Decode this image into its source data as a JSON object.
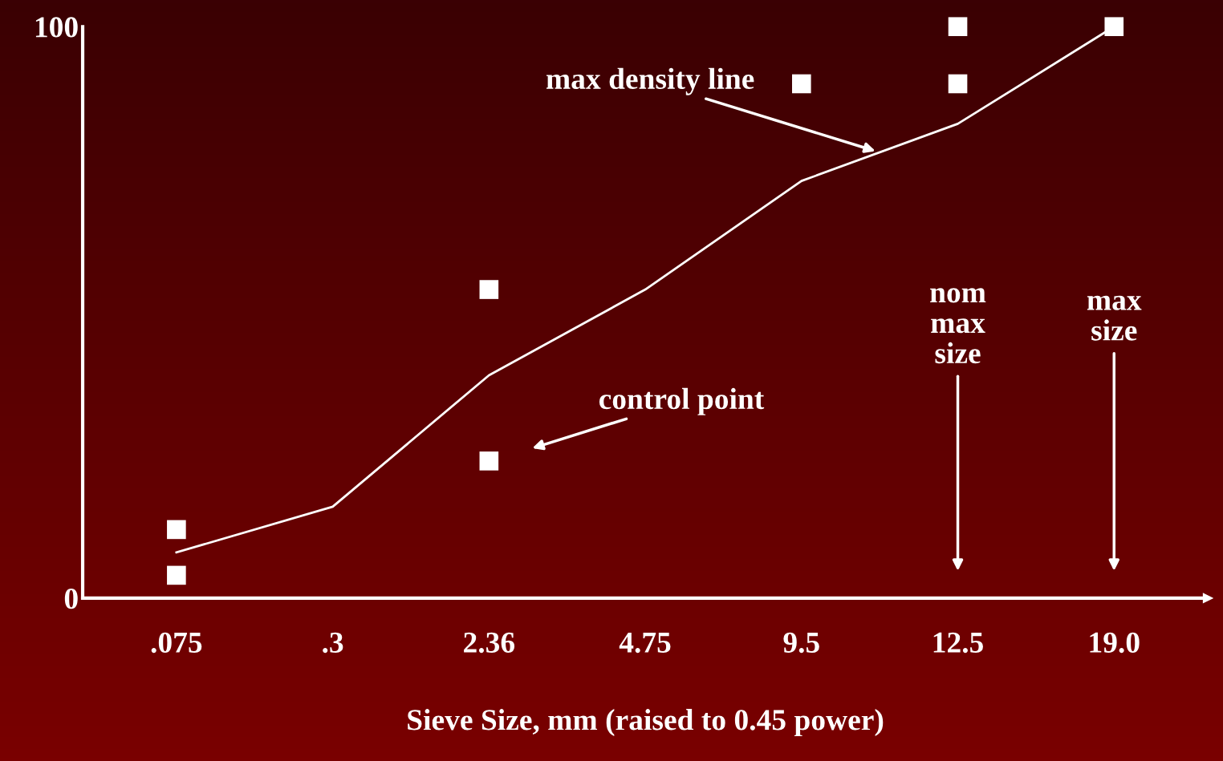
{
  "chart_data": {
    "type": "scatter",
    "xlabel": "Sieve Size, mm (raised to 0.45 power)",
    "categories": [
      ".075",
      ".3",
      "2.36",
      "4.75",
      "9.5",
      "12.5",
      "19.0"
    ],
    "ylim": [
      0,
      100
    ],
    "yticks": [
      0,
      100
    ],
    "grid": false,
    "marker": "square",
    "series": [
      {
        "color": "#ffffff",
        "x": [
          ".075",
          ".075",
          "2.36",
          "2.36",
          "9.5",
          "12.5",
          "12.5",
          "19.0"
        ],
        "values": [
          4,
          12,
          24,
          54,
          90,
          90,
          100,
          100
        ]
      },
      {
        "type": "line",
        "color": "#ffffff",
        "marker": "none",
        "values": [
          8,
          16,
          39,
          54,
          73,
          83,
          100
        ]
      }
    ],
    "annotations": [
      "max density line",
      "control point",
      "nom\nmax\nsize",
      "max\nsize"
    ]
  }
}
